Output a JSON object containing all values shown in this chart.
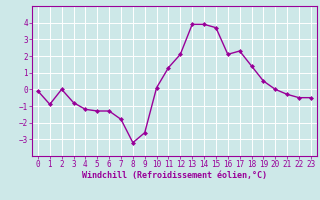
{
  "x": [
    0,
    1,
    2,
    3,
    4,
    5,
    6,
    7,
    8,
    9,
    10,
    11,
    12,
    13,
    14,
    15,
    16,
    17,
    18,
    19,
    20,
    21,
    22,
    23
  ],
  "y": [
    -0.1,
    -0.9,
    0.0,
    -0.8,
    -1.2,
    -1.3,
    -1.3,
    -1.8,
    -3.2,
    -2.6,
    0.1,
    1.3,
    2.1,
    3.9,
    3.9,
    3.7,
    2.1,
    2.3,
    1.4,
    0.5,
    0.0,
    -0.3,
    -0.5,
    -0.5
  ],
  "line_color": "#990099",
  "marker": "D",
  "marker_size": 2.0,
  "bg_color": "#cde8e8",
  "grid_color": "#ffffff",
  "xlabel": "Windchill (Refroidissement éolien,°C)",
  "xlabel_color": "#990099",
  "tick_color": "#990099",
  "spine_color": "#990099",
  "ylim": [
    -4,
    5
  ],
  "xlim": [
    -0.5,
    23.5
  ],
  "yticks": [
    -3,
    -2,
    -1,
    0,
    1,
    2,
    3,
    4
  ],
  "xticks": [
    0,
    1,
    2,
    3,
    4,
    5,
    6,
    7,
    8,
    9,
    10,
    11,
    12,
    13,
    14,
    15,
    16,
    17,
    18,
    19,
    20,
    21,
    22,
    23
  ],
  "tick_fontsize": 5.5,
  "xlabel_fontsize": 6.0,
  "linewidth": 1.0
}
